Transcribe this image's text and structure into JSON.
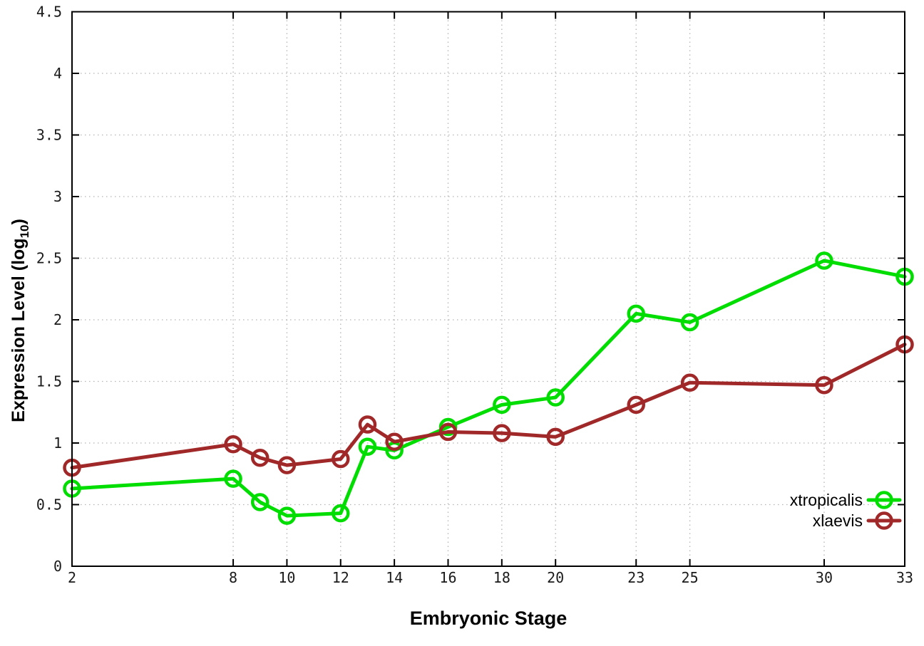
{
  "chart_data": {
    "type": "line",
    "title": "",
    "xlabel": "Embryonic Stage",
    "ylabel": {
      "prefix": "Expression Level (log",
      "sub": "10",
      "suffix": ")"
    },
    "xlim": [
      2,
      33
    ],
    "ylim": [
      0,
      4.5
    ],
    "xtick_values": [
      2,
      8,
      10,
      12,
      14,
      16,
      18,
      20,
      23,
      25,
      30,
      33
    ],
    "xtick_labels": [
      "2",
      "8",
      "10",
      "12",
      "14",
      "16",
      "18",
      "20",
      "23",
      "25",
      "30",
      "33"
    ],
    "ytick_values": [
      0,
      0.5,
      1,
      1.5,
      2,
      2.5,
      3,
      3.5,
      4,
      4.5
    ],
    "ytick_labels": [
      "0",
      "0.5",
      "1",
      "1.5",
      "2",
      "2.5",
      "3",
      "3.5",
      "4",
      "4.5"
    ],
    "grid": true,
    "legend_position": "inside-bottom-right",
    "marker": "open-circle",
    "x": [
      2,
      8,
      9,
      10,
      12,
      13,
      14,
      16,
      18,
      20,
      23,
      25,
      30,
      33
    ],
    "series": [
      {
        "name": "xtropicalis",
        "color": "#00dd00",
        "values": [
          0.63,
          0.71,
          0.52,
          0.41,
          0.43,
          0.97,
          0.94,
          1.13,
          1.31,
          1.37,
          2.05,
          1.98,
          2.48,
          2.35
        ]
      },
      {
        "name": "xlaevis",
        "color": "#a02828",
        "values": [
          0.8,
          0.99,
          0.88,
          0.82,
          0.87,
          1.15,
          1.01,
          1.09,
          1.08,
          1.05,
          1.31,
          1.49,
          1.47,
          1.8
        ]
      }
    ],
    "colors": {
      "border": "#000000",
      "grid": "#b4b4b4",
      "background": "#ffffff"
    }
  }
}
